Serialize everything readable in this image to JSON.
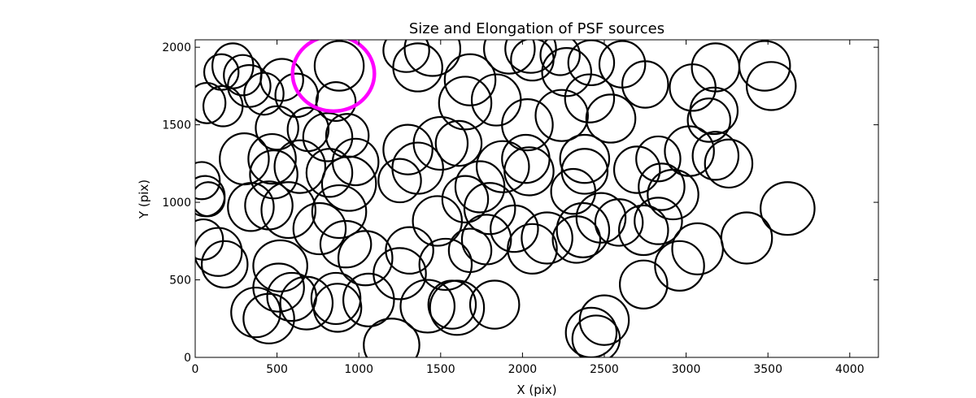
{
  "chart_data": {
    "type": "scatter",
    "title": "Size and Elongation of PSF sources",
    "xlabel": "X (pix)",
    "ylabel": "Y (pix)",
    "xlim": [
      0,
      4175
    ],
    "ylim": [
      0,
      2048
    ],
    "xticks": [
      0,
      500,
      1000,
      1500,
      2000,
      2500,
      3000,
      3500,
      4000
    ],
    "yticks": [
      0,
      500,
      1000,
      1500,
      2000
    ],
    "grid": false,
    "marker": "ellipse outline (width/height in pixels encode PSF size and elongation)",
    "colors": {
      "default": "#000000",
      "highlight": "#ff00ff"
    },
    "highlight": {
      "x": 845,
      "y": 1830,
      "w": 500,
      "h": 485
    },
    "sources": [
      {
        "x": 230,
        "y": 1880,
        "w": 250,
        "h": 290
      },
      {
        "x": 290,
        "y": 1820,
        "w": 230,
        "h": 260
      },
      {
        "x": 160,
        "y": 1840,
        "w": 210,
        "h": 230
      },
      {
        "x": 170,
        "y": 1620,
        "w": 240,
        "h": 260
      },
      {
        "x": 330,
        "y": 1750,
        "w": 260,
        "h": 270
      },
      {
        "x": 70,
        "y": 1640,
        "w": 230,
        "h": 260
      },
      {
        "x": 530,
        "y": 1790,
        "w": 260,
        "h": 270
      },
      {
        "x": 420,
        "y": 1700,
        "w": 240,
        "h": 270
      },
      {
        "x": 620,
        "y": 1690,
        "w": 260,
        "h": 280
      },
      {
        "x": 880,
        "y": 1880,
        "w": 300,
        "h": 320
      },
      {
        "x": 860,
        "y": 1650,
        "w": 240,
        "h": 250
      },
      {
        "x": 930,
        "y": 1430,
        "w": 260,
        "h": 280
      },
      {
        "x": 810,
        "y": 1420,
        "w": 300,
        "h": 310
      },
      {
        "x": 690,
        "y": 1470,
        "w": 250,
        "h": 280
      },
      {
        "x": 500,
        "y": 1480,
        "w": 260,
        "h": 280
      },
      {
        "x": 470,
        "y": 1280,
        "w": 290,
        "h": 320
      },
      {
        "x": 300,
        "y": 1280,
        "w": 300,
        "h": 330
      },
      {
        "x": 480,
        "y": 1180,
        "w": 290,
        "h": 310
      },
      {
        "x": 640,
        "y": 1230,
        "w": 310,
        "h": 340
      },
      {
        "x": 820,
        "y": 1190,
        "w": 280,
        "h": 310
      },
      {
        "x": 980,
        "y": 1260,
        "w": 280,
        "h": 300
      },
      {
        "x": 940,
        "y": 1120,
        "w": 330,
        "h": 350
      },
      {
        "x": 60,
        "y": 1040,
        "w": 240,
        "h": 260
      },
      {
        "x": 80,
        "y": 1020,
        "w": 200,
        "h": 220
      },
      {
        "x": 40,
        "y": 1140,
        "w": 220,
        "h": 240
      },
      {
        "x": 340,
        "y": 970,
        "w": 280,
        "h": 310
      },
      {
        "x": 450,
        "y": 980,
        "w": 290,
        "h": 310
      },
      {
        "x": 570,
        "y": 950,
        "w": 330,
        "h": 360
      },
      {
        "x": 760,
        "y": 830,
        "w": 320,
        "h": 330
      },
      {
        "x": 880,
        "y": 940,
        "w": 330,
        "h": 340
      },
      {
        "x": 50,
        "y": 760,
        "w": 240,
        "h": 260
      },
      {
        "x": 140,
        "y": 680,
        "w": 290,
        "h": 310
      },
      {
        "x": 180,
        "y": 600,
        "w": 280,
        "h": 300
      },
      {
        "x": 520,
        "y": 590,
        "w": 330,
        "h": 330
      },
      {
        "x": 510,
        "y": 450,
        "w": 310,
        "h": 310
      },
      {
        "x": 590,
        "y": 390,
        "w": 300,
        "h": 310
      },
      {
        "x": 680,
        "y": 350,
        "w": 320,
        "h": 340
      },
      {
        "x": 860,
        "y": 380,
        "w": 300,
        "h": 330
      },
      {
        "x": 870,
        "y": 320,
        "w": 290,
        "h": 310
      },
      {
        "x": 920,
        "y": 730,
        "w": 310,
        "h": 300
      },
      {
        "x": 1040,
        "y": 640,
        "w": 330,
        "h": 350
      },
      {
        "x": 1060,
        "y": 370,
        "w": 310,
        "h": 340
      },
      {
        "x": 370,
        "y": 290,
        "w": 300,
        "h": 320
      },
      {
        "x": 450,
        "y": 250,
        "w": 310,
        "h": 320
      },
      {
        "x": 1200,
        "y": 80,
        "w": 340,
        "h": 340
      },
      {
        "x": 1290,
        "y": 1980,
        "w": 280,
        "h": 280
      },
      {
        "x": 1450,
        "y": 1990,
        "w": 340,
        "h": 350
      },
      {
        "x": 1360,
        "y": 1870,
        "w": 300,
        "h": 310
      },
      {
        "x": 1680,
        "y": 1790,
        "w": 310,
        "h": 330
      },
      {
        "x": 1650,
        "y": 1640,
        "w": 320,
        "h": 340
      },
      {
        "x": 1840,
        "y": 1660,
        "w": 300,
        "h": 330
      },
      {
        "x": 1920,
        "y": 1990,
        "w": 310,
        "h": 320
      },
      {
        "x": 2050,
        "y": 1990,
        "w": 310,
        "h": 310
      },
      {
        "x": 2270,
        "y": 1840,
        "w": 300,
        "h": 310
      },
      {
        "x": 2420,
        "y": 1900,
        "w": 280,
        "h": 290
      },
      {
        "x": 2610,
        "y": 1890,
        "w": 280,
        "h": 300
      },
      {
        "x": 2750,
        "y": 1760,
        "w": 280,
        "h": 300
      },
      {
        "x": 2540,
        "y": 1540,
        "w": 300,
        "h": 310
      },
      {
        "x": 2410,
        "y": 1670,
        "w": 300,
        "h": 310
      },
      {
        "x": 2240,
        "y": 1560,
        "w": 320,
        "h": 330
      },
      {
        "x": 2030,
        "y": 1500,
        "w": 310,
        "h": 330
      },
      {
        "x": 1300,
        "y": 1340,
        "w": 300,
        "h": 320
      },
      {
        "x": 1360,
        "y": 1220,
        "w": 310,
        "h": 330
      },
      {
        "x": 1250,
        "y": 1140,
        "w": 260,
        "h": 280
      },
      {
        "x": 1500,
        "y": 1380,
        "w": 330,
        "h": 340
      },
      {
        "x": 1610,
        "y": 1380,
        "w": 280,
        "h": 290
      },
      {
        "x": 1740,
        "y": 1100,
        "w": 300,
        "h": 330
      },
      {
        "x": 1650,
        "y": 1020,
        "w": 280,
        "h": 300
      },
      {
        "x": 1880,
        "y": 1230,
        "w": 320,
        "h": 330
      },
      {
        "x": 2020,
        "y": 1280,
        "w": 290,
        "h": 310
      },
      {
        "x": 2040,
        "y": 1200,
        "w": 300,
        "h": 310
      },
      {
        "x": 2310,
        "y": 1070,
        "w": 270,
        "h": 290
      },
      {
        "x": 2380,
        "y": 1280,
        "w": 300,
        "h": 310
      },
      {
        "x": 2380,
        "y": 1200,
        "w": 280,
        "h": 290
      },
      {
        "x": 2830,
        "y": 1280,
        "w": 270,
        "h": 290
      },
      {
        "x": 3020,
        "y": 1330,
        "w": 300,
        "h": 320
      },
      {
        "x": 3180,
        "y": 1300,
        "w": 280,
        "h": 310
      },
      {
        "x": 3170,
        "y": 1590,
        "w": 290,
        "h": 300
      },
      {
        "x": 3140,
        "y": 1530,
        "w": 260,
        "h": 280
      },
      {
        "x": 3040,
        "y": 1740,
        "w": 280,
        "h": 300
      },
      {
        "x": 3180,
        "y": 1870,
        "w": 290,
        "h": 310
      },
      {
        "x": 3480,
        "y": 1880,
        "w": 310,
        "h": 320
      },
      {
        "x": 3520,
        "y": 1750,
        "w": 300,
        "h": 310
      },
      {
        "x": 3620,
        "y": 960,
        "w": 330,
        "h": 340
      },
      {
        "x": 3370,
        "y": 770,
        "w": 310,
        "h": 330
      },
      {
        "x": 3070,
        "y": 700,
        "w": 310,
        "h": 330
      },
      {
        "x": 2960,
        "y": 590,
        "w": 300,
        "h": 320
      },
      {
        "x": 2740,
        "y": 470,
        "w": 290,
        "h": 310
      },
      {
        "x": 2500,
        "y": 240,
        "w": 300,
        "h": 320
      },
      {
        "x": 2420,
        "y": 160,
        "w": 310,
        "h": 320
      },
      {
        "x": 2450,
        "y": 120,
        "w": 290,
        "h": 300
      },
      {
        "x": 1950,
        "y": 830,
        "w": 290,
        "h": 300
      },
      {
        "x": 1800,
        "y": 960,
        "w": 310,
        "h": 330
      },
      {
        "x": 1780,
        "y": 760,
        "w": 300,
        "h": 320
      },
      {
        "x": 1680,
        "y": 690,
        "w": 260,
        "h": 280
      },
      {
        "x": 1480,
        "y": 880,
        "w": 300,
        "h": 320
      },
      {
        "x": 1530,
        "y": 600,
        "w": 320,
        "h": 330
      },
      {
        "x": 1310,
        "y": 690,
        "w": 290,
        "h": 300
      },
      {
        "x": 1250,
        "y": 540,
        "w": 320,
        "h": 330
      },
      {
        "x": 1420,
        "y": 330,
        "w": 330,
        "h": 340
      },
      {
        "x": 1570,
        "y": 340,
        "w": 290,
        "h": 310
      },
      {
        "x": 1600,
        "y": 320,
        "w": 330,
        "h": 350
      },
      {
        "x": 1830,
        "y": 340,
        "w": 300,
        "h": 310
      },
      {
        "x": 2060,
        "y": 700,
        "w": 300,
        "h": 320
      },
      {
        "x": 2150,
        "y": 770,
        "w": 310,
        "h": 330
      },
      {
        "x": 2330,
        "y": 760,
        "w": 290,
        "h": 300
      },
      {
        "x": 2370,
        "y": 820,
        "w": 320,
        "h": 350
      },
      {
        "x": 2480,
        "y": 900,
        "w": 300,
        "h": 320
      },
      {
        "x": 2590,
        "y": 870,
        "w": 290,
        "h": 300
      },
      {
        "x": 2740,
        "y": 820,
        "w": 300,
        "h": 320
      },
      {
        "x": 2830,
        "y": 880,
        "w": 290,
        "h": 300
      },
      {
        "x": 2920,
        "y": 1050,
        "w": 310,
        "h": 320
      },
      {
        "x": 2850,
        "y": 1100,
        "w": 280,
        "h": 300
      },
      {
        "x": 2700,
        "y": 1210,
        "w": 280,
        "h": 300
      },
      {
        "x": 3260,
        "y": 1250,
        "w": 290,
        "h": 310
      },
      {
        "x": 2230,
        "y": 1950,
        "w": 240,
        "h": 260
      },
      {
        "x": 2060,
        "y": 1920,
        "w": 260,
        "h": 270
      }
    ]
  }
}
